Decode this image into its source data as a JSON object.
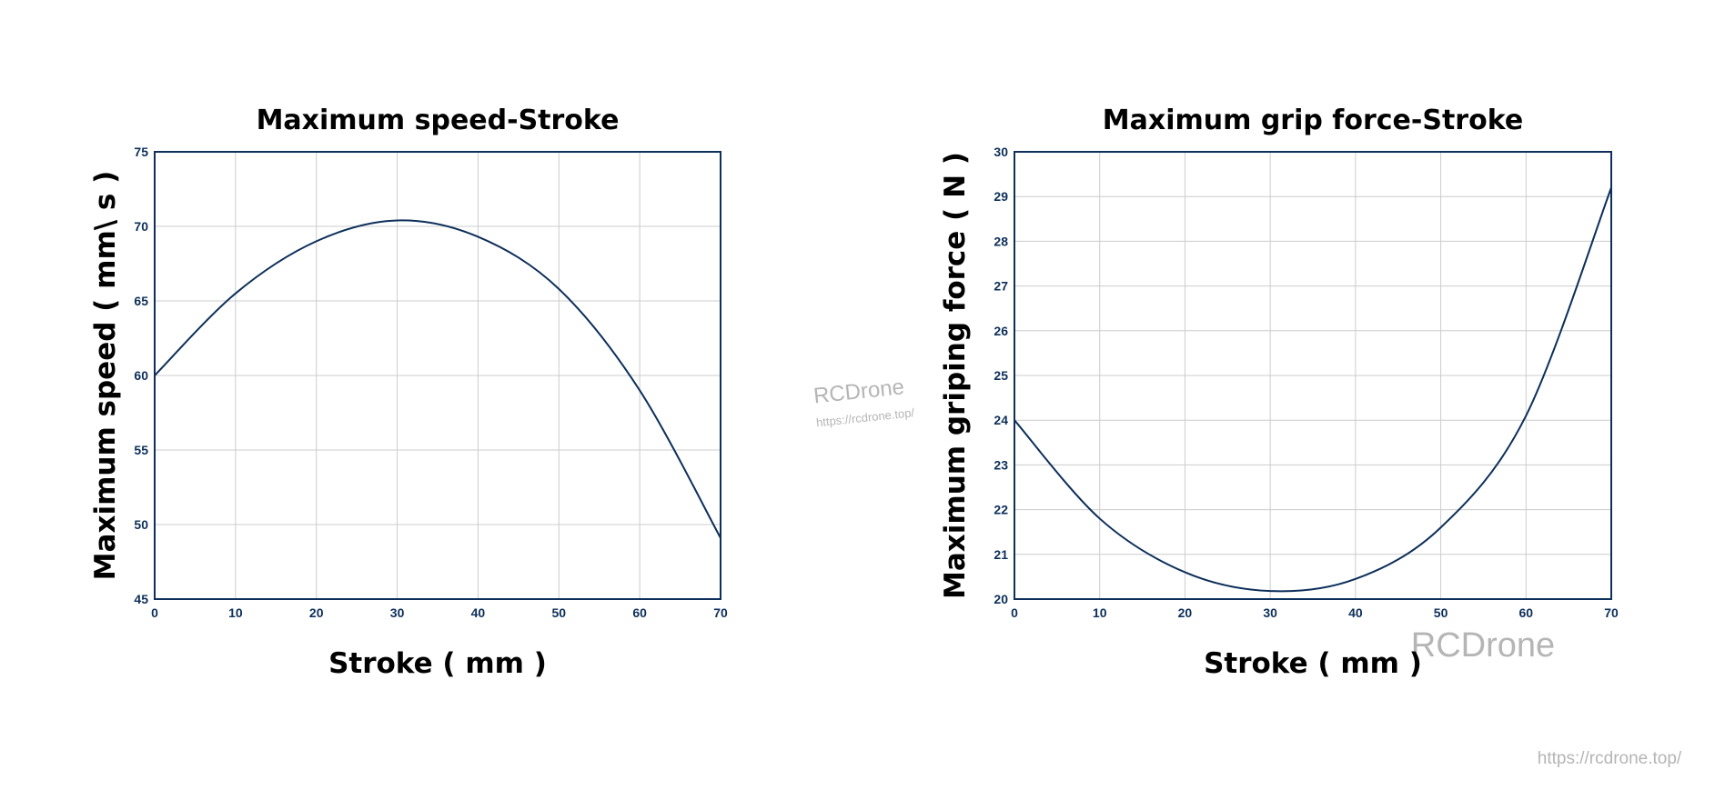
{
  "chart_data": [
    {
      "type": "line",
      "title": "Maximum speed-Stroke",
      "xlabel": "Stroke ( mm )",
      "ylabel": "Maximum speed ( mm\\ s )",
      "xlim": [
        0,
        70
      ],
      "ylim": [
        45,
        75
      ],
      "xticks": [
        0,
        10,
        20,
        30,
        40,
        50,
        60,
        70
      ],
      "yticks": [
        45,
        50,
        55,
        60,
        65,
        70,
        75
      ],
      "grid": true,
      "x": [
        0,
        10,
        20,
        30,
        40,
        50,
        60,
        70
      ],
      "y": [
        60,
        65.5,
        69,
        70.4,
        69.3,
        65.8,
        59,
        49.1
      ]
    },
    {
      "type": "line",
      "title": "Maximum grip force-Stroke",
      "xlabel": "Stroke ( mm )",
      "ylabel": "Maximum griping force ( N )",
      "xlim": [
        0,
        70
      ],
      "ylim": [
        20,
        30
      ],
      "xticks": [
        0,
        10,
        20,
        30,
        40,
        50,
        60,
        70
      ],
      "yticks": [
        20,
        21,
        22,
        23,
        24,
        25,
        26,
        27,
        28,
        29,
        30
      ],
      "grid": true,
      "x": [
        0,
        10,
        20,
        30,
        40,
        50,
        60,
        70
      ],
      "y": [
        24,
        21.8,
        20.6,
        20.18,
        20.45,
        21.6,
        24.1,
        29.2
      ]
    }
  ],
  "colors": {
    "line": "#0d2f5a",
    "axes": "#0d2f5a",
    "grid": "#cccccc"
  },
  "watermarks": {
    "center_brand": "RCDrone",
    "center_url": "https://rcdrone.top/",
    "right_brand": "RCDrone",
    "corner_url": "https://rcdrone.top/"
  }
}
